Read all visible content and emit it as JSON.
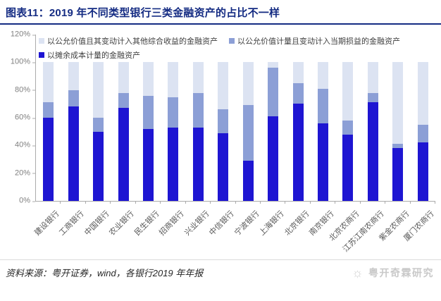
{
  "title": "图表11：2019 年不同类型银行三类金融资产的占比不一样",
  "source_note": "资料来源：粤开证券，wind，各银行2019 年年报",
  "watermark": "粤开奇霖研究",
  "icons": {
    "watermark_logo": "sun-icon"
  },
  "colors": {
    "title_navy": "#152C83",
    "amortized_cost": "#1E15D2",
    "fvtpl": "#8C9FD6",
    "fvoci": "#DCE3F2",
    "axis_gray": "#ABABAB",
    "tick_text": "#7F7F7F"
  },
  "chart_data": {
    "type": "bar",
    "stacked": true,
    "grid": false,
    "legend_position": "top-left",
    "ylim": [
      0,
      120
    ],
    "yticks": [
      "0%",
      "20%",
      "40%",
      "60%",
      "80%",
      "100%",
      "120%"
    ],
    "categories": [
      "建设银行",
      "工商银行",
      "中国银行",
      "农业银行",
      "民生银行",
      "招商银行",
      "兴业银行",
      "中信银行",
      "宁波银行",
      "上海银行",
      "北京银行",
      "南京银行",
      "北京农商行",
      "江苏江南农商行",
      "紫金农商行",
      "厦门农商行"
    ],
    "series": [
      {
        "name": "以摊余成本计量的金融资产",
        "color": "#1E15D2",
        "values": [
          60,
          68,
          50,
          67,
          52,
          53,
          53,
          49,
          29,
          61,
          70,
          56,
          48,
          71,
          38,
          42
        ]
      },
      {
        "name": "以公允价值计量且变动计入当期损益的金融资产",
        "color": "#8C9FD6",
        "values": [
          11,
          12,
          10,
          11,
          24,
          22,
          25,
          17,
          40,
          35,
          15,
          25,
          10,
          7,
          3,
          13
        ]
      },
      {
        "name": "以公允价值且其变动计入其他综合收益的金融资产",
        "color": "#DCE3F2",
        "values": [
          29,
          20,
          40,
          22,
          24,
          25,
          22,
          34,
          31,
          4,
          15,
          19,
          42,
          22,
          59,
          45
        ]
      }
    ]
  }
}
